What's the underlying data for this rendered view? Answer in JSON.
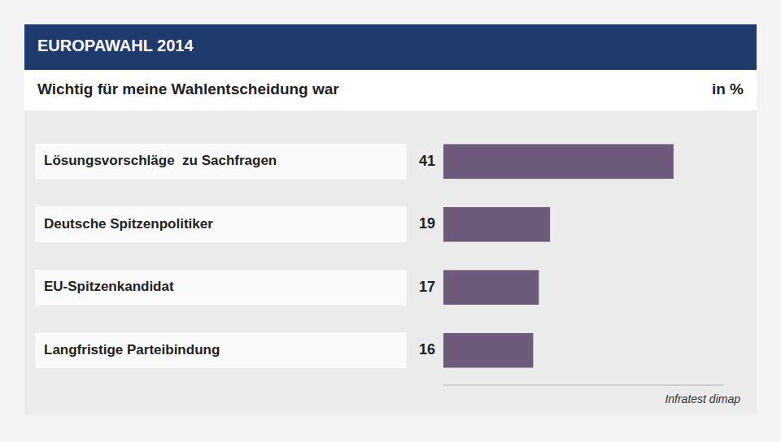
{
  "chart_data": {
    "type": "bar",
    "orientation": "horizontal",
    "title": "EUROPAWAHL 2014",
    "subtitle": "Wichtig für meine Wahlentscheidung war",
    "x_label": "in %",
    "annotations": [
      "Infratest dimap"
    ],
    "categories": [
      "Lösungsvorschläge  zu Sachfragen",
      "Deutsche Spitzenpolitiker",
      "EU-Spitzenkandidat",
      "Langfristige Parteibindung"
    ],
    "values": [
      41,
      19,
      17,
      16
    ],
    "color": "#6d5a7a",
    "xlim": [
      0,
      50
    ],
    "data_labels": true,
    "grid": false,
    "tick_labels": false
  }
}
